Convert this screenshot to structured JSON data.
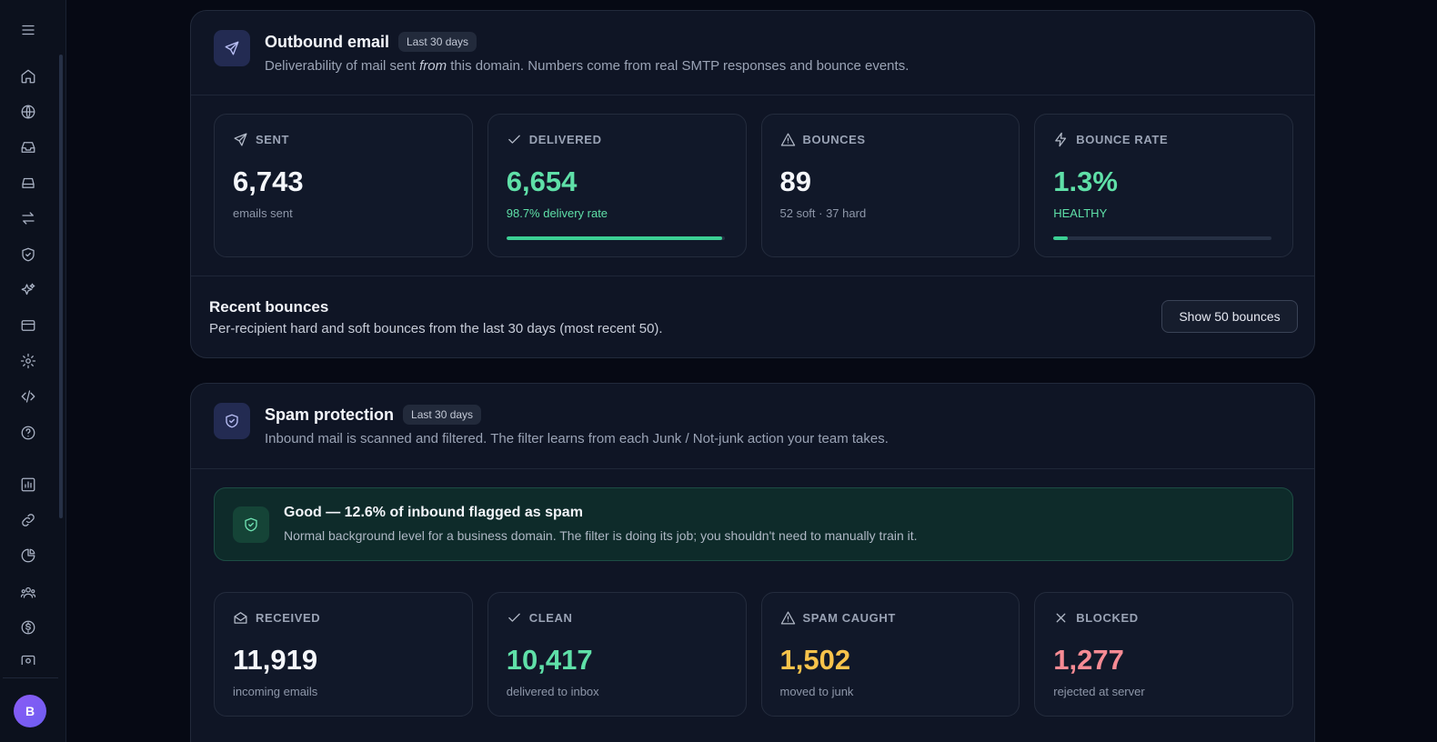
{
  "sidebar": {
    "icons": [
      "menu-icon",
      "home-icon",
      "globe-icon",
      "inbox-icon",
      "drive-icon",
      "transfer-icon",
      "shield-icon",
      "sparkles-icon",
      "credit-card-icon",
      "gear-icon",
      "code-icon",
      "help-icon",
      "chart-icon",
      "link-icon",
      "pie-chart-icon",
      "users-icon",
      "dollar-icon",
      "camera-icon"
    ],
    "avatar_initial": "B"
  },
  "outbound": {
    "title": "Outbound email",
    "badge": "Last 30 days",
    "subtitle_pre": "Deliverability of mail sent ",
    "subtitle_em": "from",
    "subtitle_post": " this domain. Numbers come from real SMTP responses and bounce events.",
    "stats": {
      "sent": {
        "label": "SENT",
        "value": "6,743",
        "sub": "emails sent"
      },
      "delivered": {
        "label": "DELIVERED",
        "value": "6,654",
        "sub": "98.7% delivery rate",
        "progress": 0.987
      },
      "bounces": {
        "label": "BOUNCES",
        "value": "89",
        "sub": "52 soft · 37 hard"
      },
      "bounce_rate": {
        "label": "BOUNCE RATE",
        "value": "1.3%",
        "sub": "HEALTHY",
        "progress": 0.065
      }
    },
    "recent_bounces": {
      "title": "Recent bounces",
      "subtitle": "Per-recipient hard and soft bounces from the last 30 days (most recent 50).",
      "button": "Show 50 bounces"
    }
  },
  "spam": {
    "title": "Spam protection",
    "badge": "Last 30 days",
    "subtitle": "Inbound mail is scanned and filtered. The filter learns from each Junk / Not-junk action your team takes.",
    "alert": {
      "title": "Good — 12.6% of inbound flagged as spam",
      "subtitle": "Normal background level for a business domain. The filter is doing its job; you shouldn't need to manually train it."
    },
    "stats": {
      "received": {
        "label": "RECEIVED",
        "value": "11,919",
        "sub": "incoming emails"
      },
      "clean": {
        "label": "CLEAN",
        "value": "10,417",
        "sub": "delivered to inbox"
      },
      "spam_caught": {
        "label": "SPAM CAUGHT",
        "value": "1,502",
        "sub": "moved to junk"
      },
      "blocked": {
        "label": "BLOCKED",
        "value": "1,277",
        "sub": "rejected at server"
      }
    }
  },
  "colors": {
    "green": "#5fe0a8",
    "amber": "#f8c34b",
    "rose": "#f78b94",
    "accent": "#6d5df0"
  }
}
